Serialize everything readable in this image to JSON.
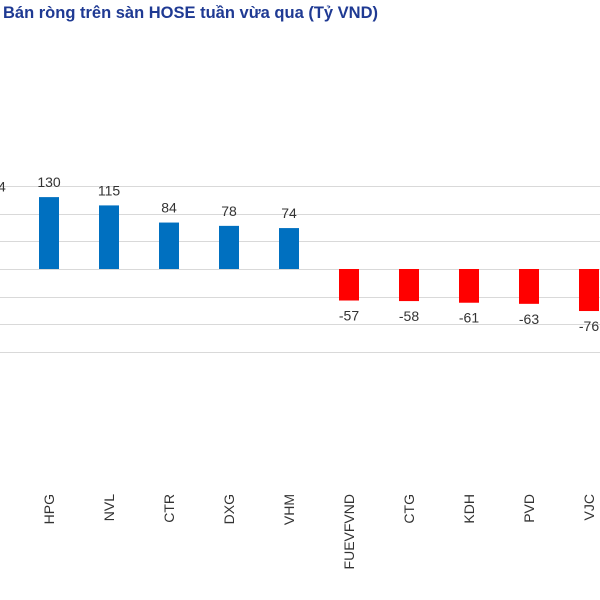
{
  "chart_data": {
    "type": "bar",
    "title": "Bán ròng trên sàn HOSE tuần vừa qua (Tỷ VND)",
    "title_color": "#1f3a93",
    "offscreen_left_label": "4",
    "categories": [
      "HPG",
      "NVL",
      "CTR",
      "DXG",
      "VHM",
      "FUEVFVND",
      "CTG",
      "KDH",
      "PVD",
      "VJC"
    ],
    "values": [
      130,
      115,
      84,
      78,
      74,
      -57,
      -58,
      -61,
      -63,
      -76
    ],
    "value_labels": [
      "130",
      "115",
      "84",
      "78",
      "74",
      "-57",
      "-58",
      "-61",
      "-63",
      "-76"
    ],
    "colors": {
      "positive": "#0070c0",
      "negative": "#ff0000",
      "grid": "#d9d9d9",
      "text": "#333333"
    },
    "ylim": [
      -150,
      150
    ],
    "grid": true,
    "xlabel": "",
    "ylabel": ""
  }
}
